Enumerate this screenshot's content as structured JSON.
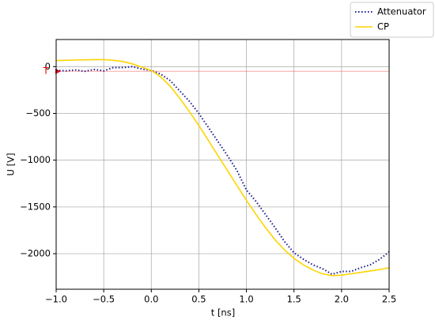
{
  "chart_data": {
    "type": "line",
    "xlabel": "t [ns]",
    "ylabel": "U [V]",
    "x": [
      -1.0,
      -0.9,
      -0.8,
      -0.7,
      -0.6,
      -0.5,
      -0.4,
      -0.3,
      -0.2,
      -0.1,
      0.0,
      0.1,
      0.2,
      0.3,
      0.4,
      0.5,
      0.6,
      0.7,
      0.8,
      0.9,
      1.0,
      1.1,
      1.2,
      1.3,
      1.4,
      1.5,
      1.6,
      1.7,
      1.8,
      1.9,
      2.0,
      2.1,
      2.2,
      2.3,
      2.4,
      2.5
    ],
    "series": [
      {
        "name": "Attenuator",
        "color": "#1a1a8c",
        "dash": "dotted",
        "values": [
          -40,
          -45,
          -35,
          -50,
          -30,
          -45,
          -10,
          -10,
          0,
          -25,
          -40,
          -80,
          -150,
          -260,
          -370,
          -500,
          -650,
          -800,
          -950,
          -1110,
          -1320,
          -1440,
          -1580,
          -1720,
          -1870,
          -1990,
          -2060,
          -2120,
          -2160,
          -2220,
          -2190,
          -2190,
          -2150,
          -2120,
          -2060,
          -1980
        ]
      },
      {
        "name": "CP",
        "color": "#ffd400",
        "dash": "solid",
        "values": [
          65,
          68,
          70,
          73,
          75,
          75,
          68,
          55,
          30,
          -5,
          -40,
          -110,
          -210,
          -340,
          -480,
          -630,
          -790,
          -950,
          -1110,
          -1270,
          -1430,
          -1580,
          -1720,
          -1850,
          -1960,
          -2050,
          -2120,
          -2175,
          -2215,
          -2235,
          -2230,
          -2215,
          -2200,
          -2185,
          -2170,
          -2150
        ]
      }
    ],
    "xlim": [
      -1.0,
      2.5
    ],
    "xticks": [
      {
        "value": -1.0,
        "label": "−1.0"
      },
      {
        "value": -0.5,
        "label": "−0.5"
      },
      {
        "value": 0.0,
        "label": "0.0"
      },
      {
        "value": 0.5,
        "label": "0.5"
      },
      {
        "value": 1.0,
        "label": "1.0"
      },
      {
        "value": 1.5,
        "label": "1.5"
      },
      {
        "value": 2.0,
        "label": "2.0"
      },
      {
        "value": 2.5,
        "label": "2.5"
      }
    ],
    "ylim": [
      -2380,
      290
    ],
    "yticks": [
      0,
      {
        "value": -500,
        "label": "−500"
      },
      {
        "value": -1000,
        "label": "−1000"
      },
      {
        "value": -1500,
        "label": "−1500"
      },
      {
        "value": -2000,
        "label": "−2000"
      }
    ],
    "grid": true,
    "legend": "upper right outside",
    "trigger_label": "T",
    "trigger_level": -50,
    "trigger_color": "#ff0000"
  }
}
